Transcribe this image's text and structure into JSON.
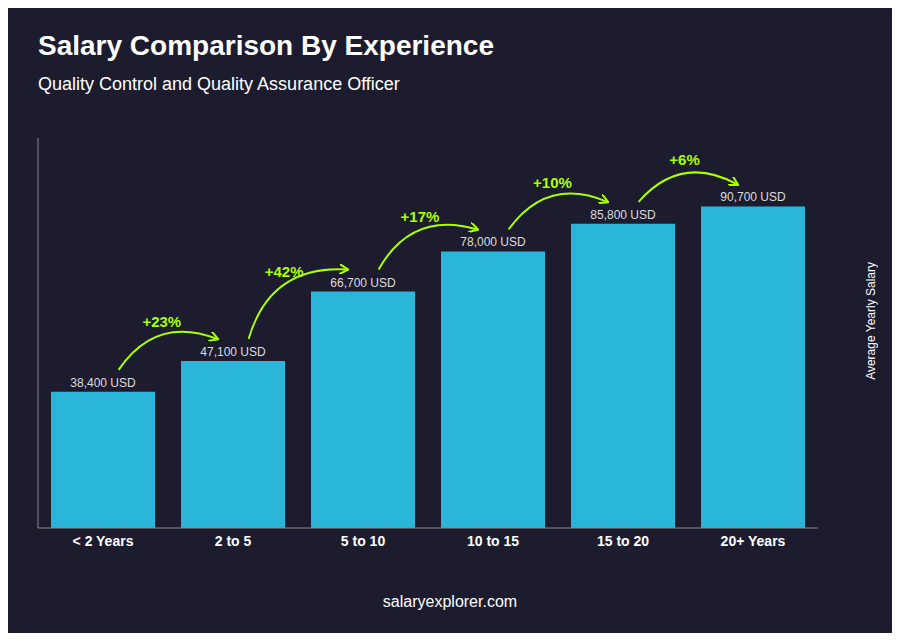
{
  "chart_data": {
    "type": "bar",
    "title": "Salary Comparison By Experience",
    "subtitle": "Quality Control and Quality Assurance Officer",
    "ylabel": "Average Yearly Salary",
    "footer": "salaryexplorer.com",
    "categories": [
      "< 2 Years",
      "2 to 5",
      "5 to 10",
      "10 to 15",
      "15 to 20",
      "20+ Years"
    ],
    "values": [
      38400,
      47100,
      66700,
      78000,
      85800,
      90700
    ],
    "value_labels": [
      "38,400 USD",
      "47,100 USD",
      "66,700 USD",
      "78,000 USD",
      "85,800 USD",
      "90,700 USD"
    ],
    "data_labels": true,
    "color": "#29b6d8",
    "ylim": [
      0,
      110000
    ],
    "tick_labels": "x",
    "grid": false,
    "annotations": [
      {
        "text": "+23%",
        "color": "#aaff00"
      },
      {
        "text": "+42%",
        "color": "#aaff00"
      },
      {
        "text": "+17%",
        "color": "#aaff00"
      },
      {
        "text": "+10%",
        "color": "#aaff00"
      },
      {
        "text": "+6%",
        "color": "#aaff00"
      }
    ]
  }
}
